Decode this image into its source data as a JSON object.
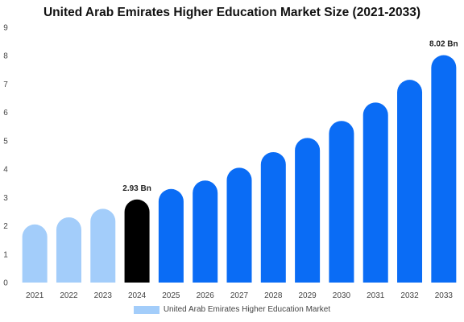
{
  "chart_data": {
    "type": "bar",
    "title": "United Arab Emirates Higher Education Market Size (2021-2033)",
    "categories": [
      "2021",
      "2022",
      "2023",
      "2024",
      "2025",
      "2026",
      "2027",
      "2028",
      "2029",
      "2030",
      "2031",
      "2032",
      "2033"
    ],
    "series": [
      {
        "name": "United Arab Emirates Higher Education Market",
        "values": [
          2.05,
          2.3,
          2.6,
          2.93,
          3.3,
          3.6,
          4.05,
          4.6,
          5.1,
          5.7,
          6.35,
          7.15,
          8.02
        ]
      }
    ],
    "data_labels": [
      {
        "category": "2024",
        "text": "2.93 Bn"
      },
      {
        "category": "2033",
        "text": "8.02 Bn"
      }
    ],
    "ylim": [
      0,
      9
    ],
    "yticks": [
      "0",
      "1",
      "2",
      "3",
      "4",
      "5",
      "6",
      "7",
      "8",
      "9"
    ],
    "grid": false,
    "legend": "bottom",
    "colors": {
      "historical": "#a3cdfa",
      "current": "#000000",
      "forecast": "#0a6cf5",
      "legend_swatch": "#a3cdfa"
    },
    "color_groups": [
      "historical",
      "historical",
      "historical",
      "current",
      "forecast",
      "forecast",
      "forecast",
      "forecast",
      "forecast",
      "forecast",
      "forecast",
      "forecast",
      "forecast"
    ]
  }
}
